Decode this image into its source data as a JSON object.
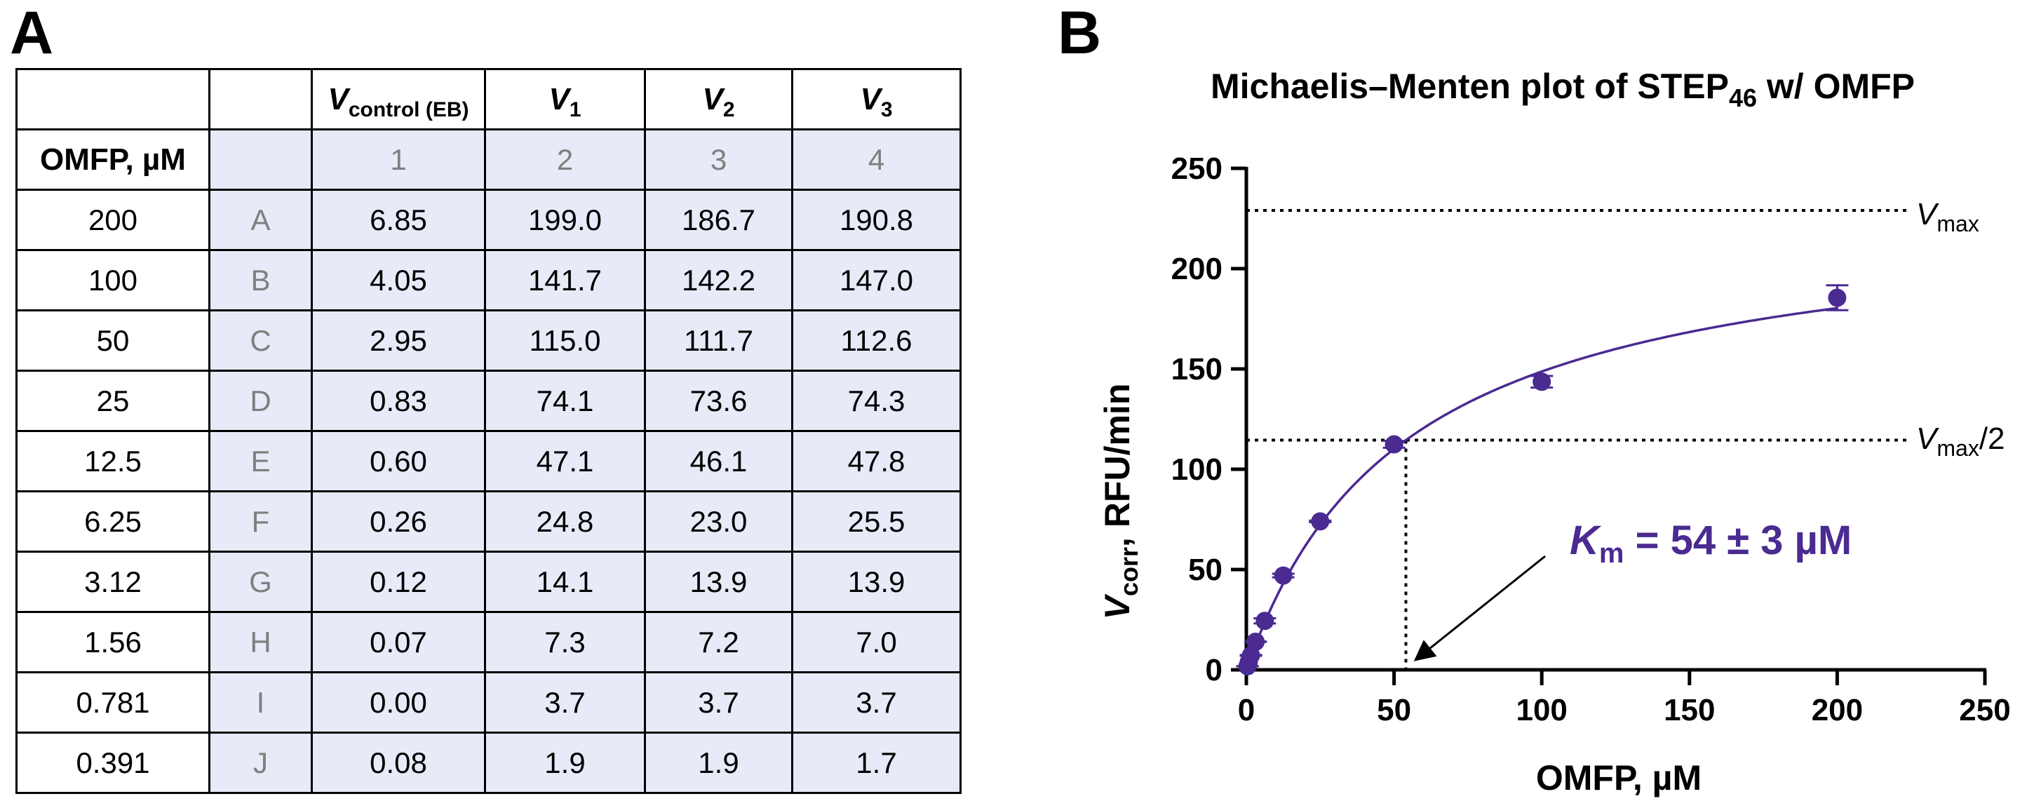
{
  "panels": {
    "a": "A",
    "b": "B"
  },
  "table": {
    "header_row": [
      "",
      "",
      "",
      "",
      "",
      ""
    ],
    "column_heads": {
      "control": {
        "main": "V",
        "sub": "control (EB)"
      },
      "v1": {
        "main": "V",
        "sub": "1"
      },
      "v2": {
        "main": "V",
        "sub": "2"
      },
      "v3": {
        "main": "V",
        "sub": "3"
      }
    },
    "second_row": {
      "label": "OMFP, µM",
      "cols": [
        "1",
        "2",
        "3",
        "4"
      ]
    },
    "rows": [
      {
        "conc": "200",
        "well": "A",
        "control": "6.85",
        "v1": "199.0",
        "v2": "186.7",
        "v3": "190.8"
      },
      {
        "conc": "100",
        "well": "B",
        "control": "4.05",
        "v1": "141.7",
        "v2": "142.2",
        "v3": "147.0"
      },
      {
        "conc": "50",
        "well": "C",
        "control": "2.95",
        "v1": "115.0",
        "v2": "111.7",
        "v3": "112.6"
      },
      {
        "conc": "25",
        "well": "D",
        "control": "0.83",
        "v1": "74.1",
        "v2": "73.6",
        "v3": "74.3"
      },
      {
        "conc": "12.5",
        "well": "E",
        "control": "0.60",
        "v1": "47.1",
        "v2": "46.1",
        "v3": "47.8"
      },
      {
        "conc": "6.25",
        "well": "F",
        "control": "0.26",
        "v1": "24.8",
        "v2": "23.0",
        "v3": "25.5"
      },
      {
        "conc": "3.12",
        "well": "G",
        "control": "0.12",
        "v1": "14.1",
        "v2": "13.9",
        "v3": "13.9"
      },
      {
        "conc": "1.56",
        "well": "H",
        "control": "0.07",
        "v1": "7.3",
        "v2": "7.2",
        "v3": "7.0"
      },
      {
        "conc": "0.781",
        "well": "I",
        "control": "0.00",
        "v1": "3.7",
        "v2": "3.7",
        "v3": "3.7"
      },
      {
        "conc": "0.391",
        "well": "J",
        "control": "0.08",
        "v1": "1.9",
        "v2": "1.9",
        "v3": "1.7"
      }
    ]
  },
  "chart_data": {
    "type": "scatter",
    "title": {
      "main": "Michaelis–Menten plot of STEP",
      "sub": "46",
      "tail": " w/ OMFP"
    },
    "xlabel": "OMFP, µM",
    "ylabel": {
      "main": "V",
      "sub": "corr",
      "tail": ", RFU/min"
    },
    "xlim": [
      0,
      250
    ],
    "ylim": [
      0,
      250
    ],
    "xticks": [
      0,
      50,
      100,
      150,
      200,
      250
    ],
    "yticks": [
      0,
      50,
      100,
      150,
      200,
      250
    ],
    "grid": false,
    "series": [
      {
        "x": [
          0.391,
          0.781,
          1.56,
          3.12,
          6.25,
          12.5,
          25,
          50,
          100,
          200
        ],
        "y": [
          1.8,
          3.7,
          7.2,
          14.0,
          24.4,
          47.0,
          74.0,
          112.4,
          143.6,
          185.5
        ],
        "error": [
          0.1,
          0.0,
          0.2,
          0.1,
          1.3,
          0.9,
          0.4,
          1.7,
          2.9,
          6.2
        ]
      }
    ],
    "fit": {
      "model": "michaelis-menten",
      "vmax": 229,
      "km": 54
    },
    "reference_lines": {
      "vmax": {
        "y": 229,
        "label_main": "V",
        "label_sub": "max",
        "label_tail": ""
      },
      "half_vmax": {
        "y": 114.5,
        "label_main": "V",
        "label_sub": "max",
        "label_tail": "/2"
      },
      "km": {
        "x": 54
      }
    },
    "annotation": {
      "main": "K",
      "sub": "m",
      "tail": " = 54 ± 3 µM"
    },
    "colors": {
      "marker": "#4b2a91",
      "fit": "#4b2a91",
      "axis": "#000000"
    }
  }
}
